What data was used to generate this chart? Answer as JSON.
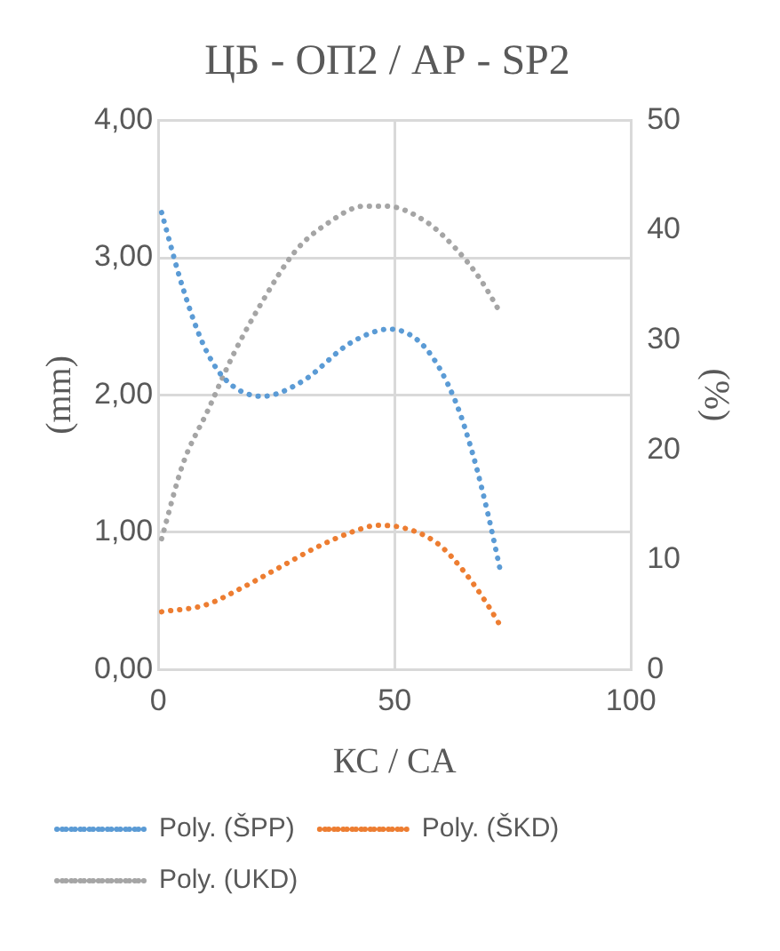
{
  "chart_data": {
    "type": "line",
    "title": "ЦБ - ОП2 / АР - SP2",
    "xlabel": "КС / CA",
    "ylabel": "(mm)",
    "y2label": "(%)",
    "xlim": [
      0,
      100
    ],
    "xticks": [
      0,
      50,
      100
    ],
    "ylim": [
      0,
      4
    ],
    "yticks": [
      {
        "value": 0,
        "label": "0,00"
      },
      {
        "value": 1,
        "label": "1,00"
      },
      {
        "value": 2,
        "label": "2,00"
      },
      {
        "value": 3,
        "label": "3,00"
      },
      {
        "value": 4,
        "label": "4,00"
      }
    ],
    "y2lim": [
      0,
      50
    ],
    "y2ticks": [
      0,
      10,
      20,
      30,
      40,
      50
    ],
    "grid": true,
    "legend": "bottom",
    "marker": "none",
    "line_style": "dotted",
    "series": [
      {
        "name": "Poly. (ŠPP)",
        "color": "#5b9bd5",
        "x": [
          0.7,
          5.2,
          9.5,
          14,
          22,
          30.5,
          40.7,
          49,
          56.6,
          62.8,
          66.7,
          69.7,
          72.5
        ],
        "values": [
          3.33,
          2.78,
          2.37,
          2.12,
          1.99,
          2.1,
          2.38,
          2.48,
          2.34,
          1.96,
          1.55,
          1.14,
          0.7
        ]
      },
      {
        "name": "Poly. (ŠKD)",
        "color": "#ed7d31",
        "x": [
          0.7,
          10,
          18,
          26,
          33.5,
          41.7,
          46.4,
          50.7,
          59,
          65,
          69.7,
          72
        ],
        "values": [
          0.42,
          0.47,
          0.6,
          0.75,
          0.89,
          1.01,
          1.05,
          1.04,
          0.92,
          0.7,
          0.47,
          0.34
        ]
      },
      {
        "name": "Poly. (UKD)",
        "color": "#a5a5a5",
        "axis": "y2",
        "x": [
          0.7,
          5.2,
          10.5,
          15.9,
          22,
          29,
          35.7,
          43.6,
          48.2,
          56.6,
          62.8,
          68.2,
          72.5
        ],
        "values": [
          11.9,
          18.7,
          23.6,
          28.7,
          33.5,
          38.1,
          40.6,
          42.2,
          42.2,
          40.8,
          38.4,
          35.5,
          32.4
        ]
      }
    ]
  }
}
